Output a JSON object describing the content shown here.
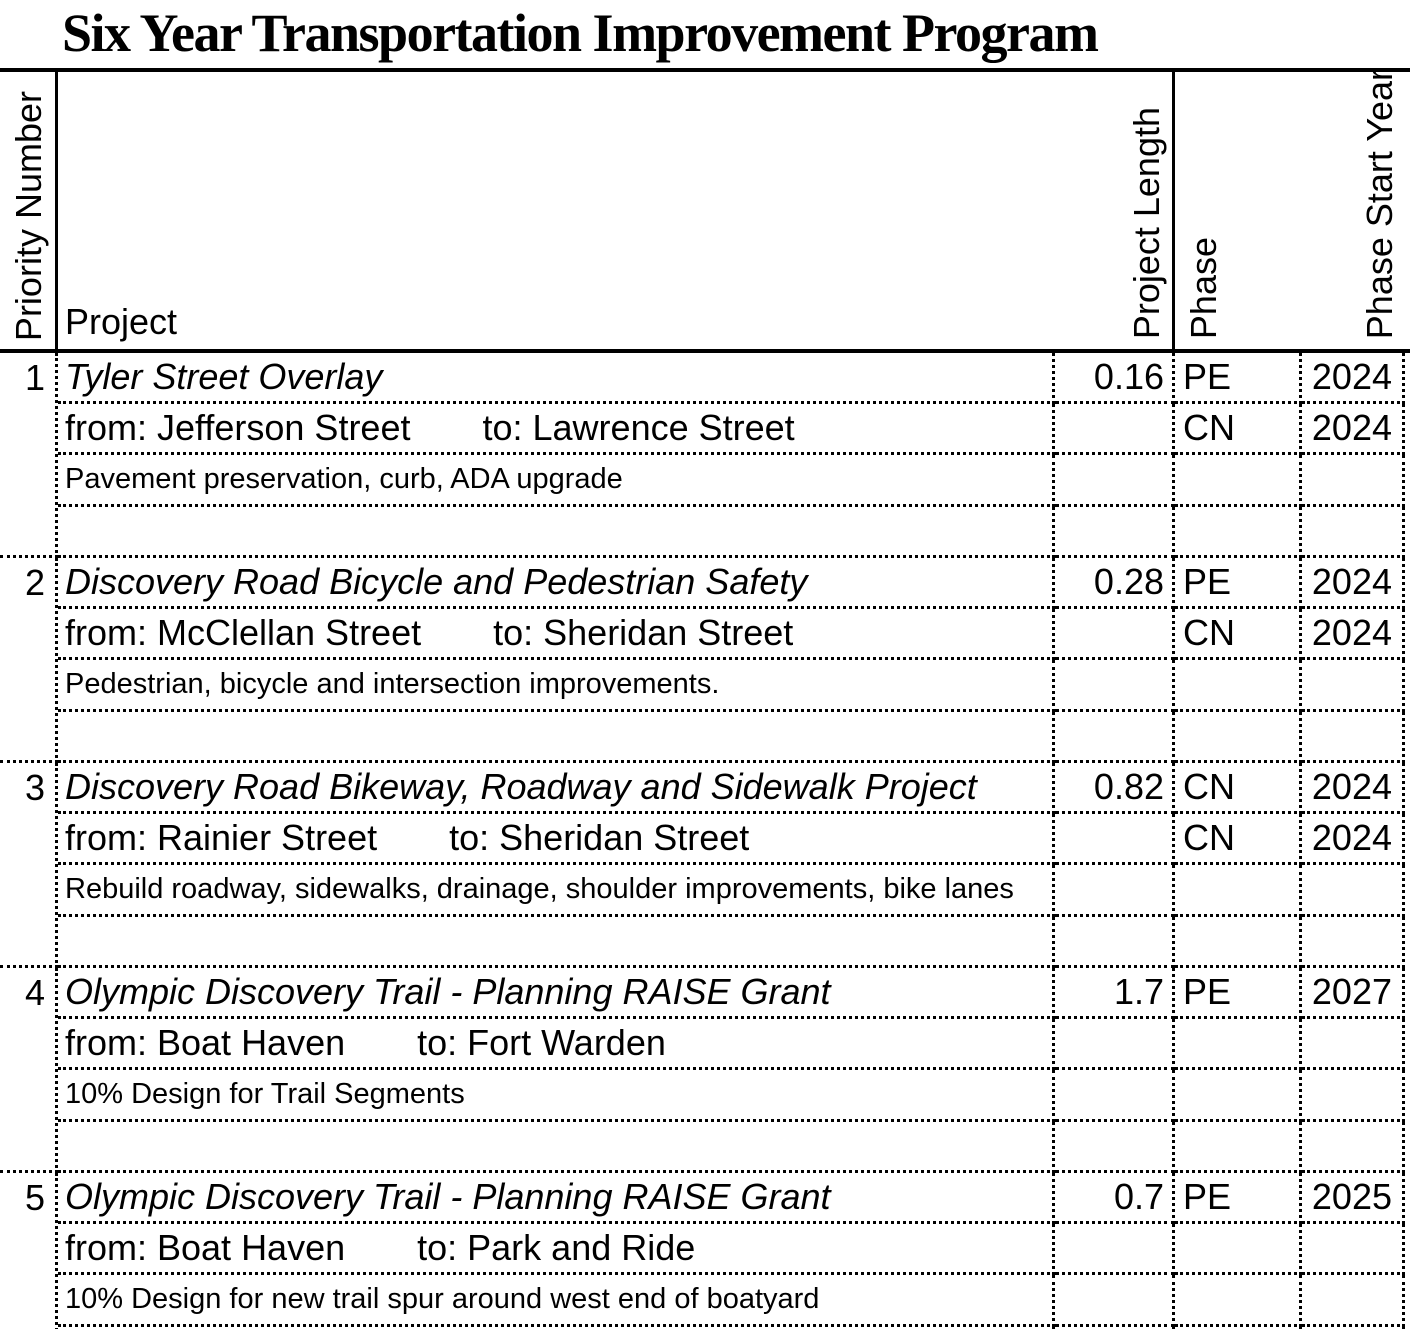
{
  "title": "Six Year Transportation Improvement Program",
  "table": {
    "headers": {
      "priority": "Priority Number",
      "project": "Project",
      "length": "Project Length",
      "phase": "Phase",
      "year": "Phase Start Year"
    },
    "rows": [
      {
        "priority": "1",
        "name": "Tyler Street Overlay",
        "from": "from: Jefferson Street",
        "to": "to: Lawrence Street",
        "description": "Pavement preservation, curb, ADA upgrade",
        "length": "0.16",
        "phase1": "PE",
        "year1": "2024",
        "phase2": "CN",
        "year2": "2024"
      },
      {
        "priority": "2",
        "name": "Discovery Road Bicycle and Pedestrian Safety",
        "from": "from: McClellan Street",
        "to": "to: Sheridan Street",
        "description": "Pedestrian, bicycle and intersection improvements.",
        "length": "0.28",
        "phase1": "PE",
        "year1": "2024",
        "phase2": "CN",
        "year2": "2024"
      },
      {
        "priority": "3",
        "name": "Discovery Road Bikeway, Roadway and Sidewalk Project",
        "from": "from: Rainier Street",
        "to": "to: Sheridan Street",
        "description": "Rebuild roadway, sidewalks, drainage, shoulder improvements, bike lanes",
        "length": "0.82",
        "phase1": "CN",
        "year1": "2024",
        "phase2": "CN",
        "year2": "2024"
      },
      {
        "priority": "4",
        "name": "Olympic Discovery Trail - Planning RAISE Grant",
        "from": "from: Boat Haven",
        "to": "to: Fort Warden",
        "description": "10% Design for Trail Segments",
        "length": "1.7",
        "phase1": "PE",
        "year1": "2027",
        "phase2": "",
        "year2": ""
      },
      {
        "priority": "5",
        "name": "Olympic Discovery Trail - Planning RAISE Grant",
        "from": "from: Boat Haven",
        "to": "to: Park and Ride",
        "description": "10% Design for new trail spur around west end of boatyard",
        "length": "0.7",
        "phase1": "PE",
        "year1": "2025",
        "phase2": "",
        "year2": ""
      }
    ]
  }
}
